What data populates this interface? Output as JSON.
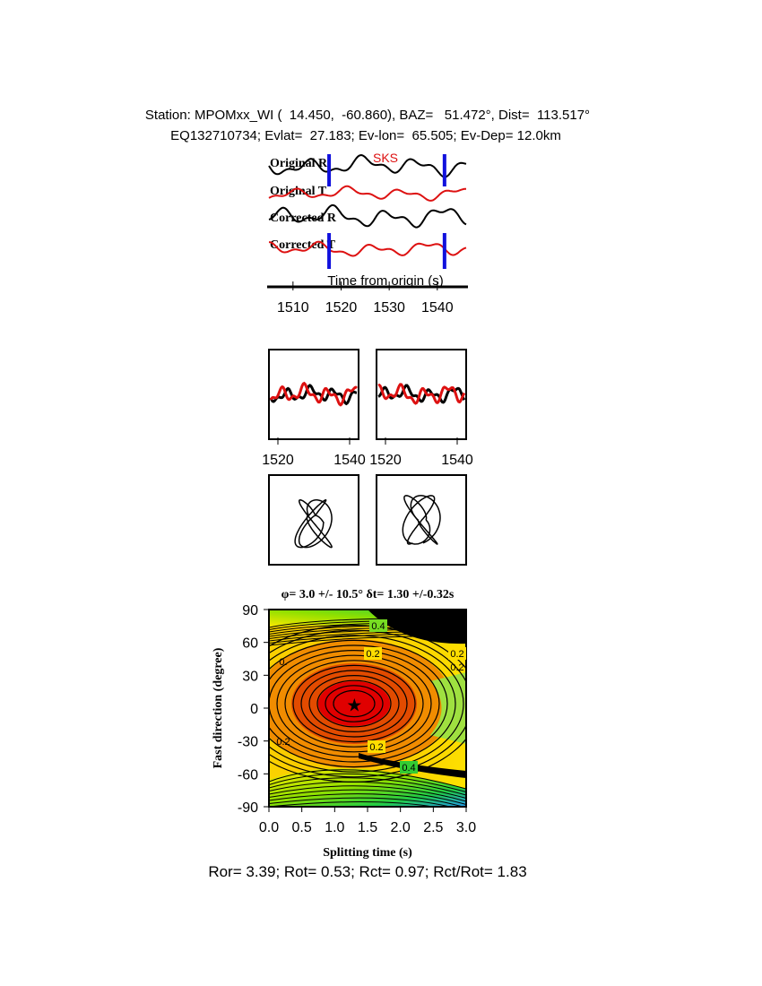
{
  "header": {
    "station_line": "Station: MPOMxx_WI (  14.450,  -60.860), BAZ=   51.472°, Dist=  113.517°",
    "event_line": "EQ132710734; Evlat=  27.183; Ev-lon=  65.505; Ev-Dep= 12.0km"
  },
  "traces": {
    "phase_label": "SKS",
    "labels": [
      "Original R",
      "Original T",
      "Corrected R",
      "Corrected T"
    ],
    "xlabel": "Time from origin (s)",
    "x_ticks": [
      1510,
      1520,
      1530,
      1540
    ],
    "window_start": 1517.5,
    "window_end": 1541.5,
    "colors": {
      "radial": "#000000",
      "transverse": "#dd1111",
      "window": "#1111dd"
    }
  },
  "waveform_panels": {
    "x_ticks": [
      1520,
      1540
    ]
  },
  "contour": {
    "title": "φ= 3.0 +/- 10.5° δt= 1.30 +/-0.32s",
    "xlabel": "Splitting time (s)",
    "ylabel": "Fast direction (degree)",
    "x_ticks": [
      "0.0",
      "0.5",
      "1.0",
      "1.5",
      "2.0",
      "2.5",
      "3.0"
    ],
    "y_ticks": [
      "90",
      "60",
      "30",
      "0",
      "-30",
      "-60",
      "-90"
    ],
    "contour_labels": [
      "0.4",
      "0.2",
      "0.2",
      "0.",
      "0.2",
      "0.2",
      "0.2",
      "0.4"
    ]
  },
  "stats_line": "Ror= 3.39; Rot= 0.53; Rct= 0.97; Rct/Rot= 1.83",
  "chart_data": [
    {
      "type": "line",
      "title": "",
      "xlabel": "Time from origin (s)",
      "ylabel": "",
      "xlim": [
        1505,
        1546
      ],
      "series": [
        {
          "name": "Original R",
          "color": "#000000"
        },
        {
          "name": "Original T",
          "color": "#dd1111"
        },
        {
          "name": "Corrected R",
          "color": "#000000"
        },
        {
          "name": "Corrected T",
          "color": "#dd1111"
        }
      ],
      "annotations": [
        "SKS"
      ],
      "window_s": [
        1517.5,
        1541.5
      ]
    },
    {
      "type": "heatmap",
      "title": "φ= 3.0 +/- 10.5° δt= 1.30 +/-0.32s",
      "xlabel": "Splitting time (s)",
      "ylabel": "Fast direction (degree)",
      "xlim": [
        0.0,
        3.0
      ],
      "ylim": [
        -90,
        90
      ],
      "best_fit": {
        "phi_deg": 3.0,
        "phi_err_deg": 10.5,
        "dt_s": 1.3,
        "dt_err_s": 0.32
      },
      "grid": false
    }
  ]
}
